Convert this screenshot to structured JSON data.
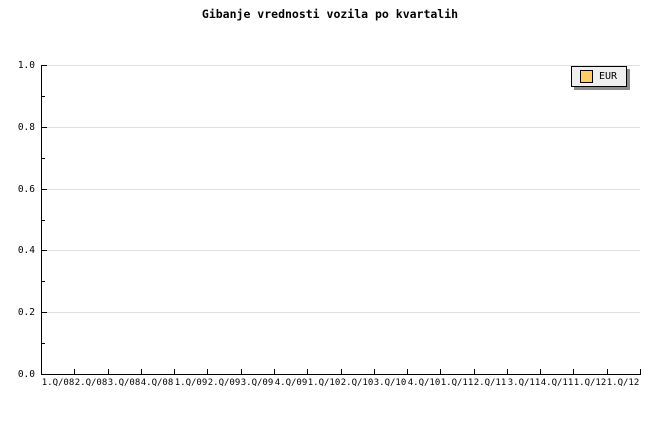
{
  "chart_data": {
    "type": "line",
    "title": "Gibanje vrednosti vozila po kvartalih",
    "xlabel": "",
    "ylabel": "",
    "ylim": [
      0.0,
      1.0
    ],
    "y_ticks": [
      0.0,
      0.2,
      0.4,
      0.6,
      0.8,
      1.0
    ],
    "y_tick_labels": [
      "0.0",
      "0.2",
      "0.4",
      "0.6",
      "0.8",
      "1.0"
    ],
    "y_minor_ticks": [
      0.1,
      0.3,
      0.5,
      0.7,
      0.9
    ],
    "x_tick_labels": [
      "1.Q/08",
      "2.Q/08",
      "3.Q/08",
      "4.Q/08",
      "1.Q/09",
      "2.Q/09",
      "3.Q/09",
      "4.Q/09",
      "1.Q/10",
      "2.Q/10",
      "3.Q/10",
      "4.Q/10",
      "1.Q/11",
      "2.Q/11",
      "3.Q/11",
      "4.Q/11",
      "1.Q/12",
      "1.Q/12"
    ],
    "grid": "horizontal-major",
    "legend": {
      "position": "top-right",
      "entries": [
        {
          "label": "EUR",
          "swatch_color": "#ffcc66"
        }
      ]
    },
    "series": [
      {
        "name": "EUR",
        "values": []
      }
    ],
    "colors": {
      "background": "#ffffff",
      "axis": "#000000",
      "grid": "#e0e0e0",
      "legend_bg": "#efefef",
      "legend_border": "#000000",
      "legend_shadow": "#8c8c8c",
      "swatch": "#ffcc66",
      "text": "#000000"
    }
  }
}
